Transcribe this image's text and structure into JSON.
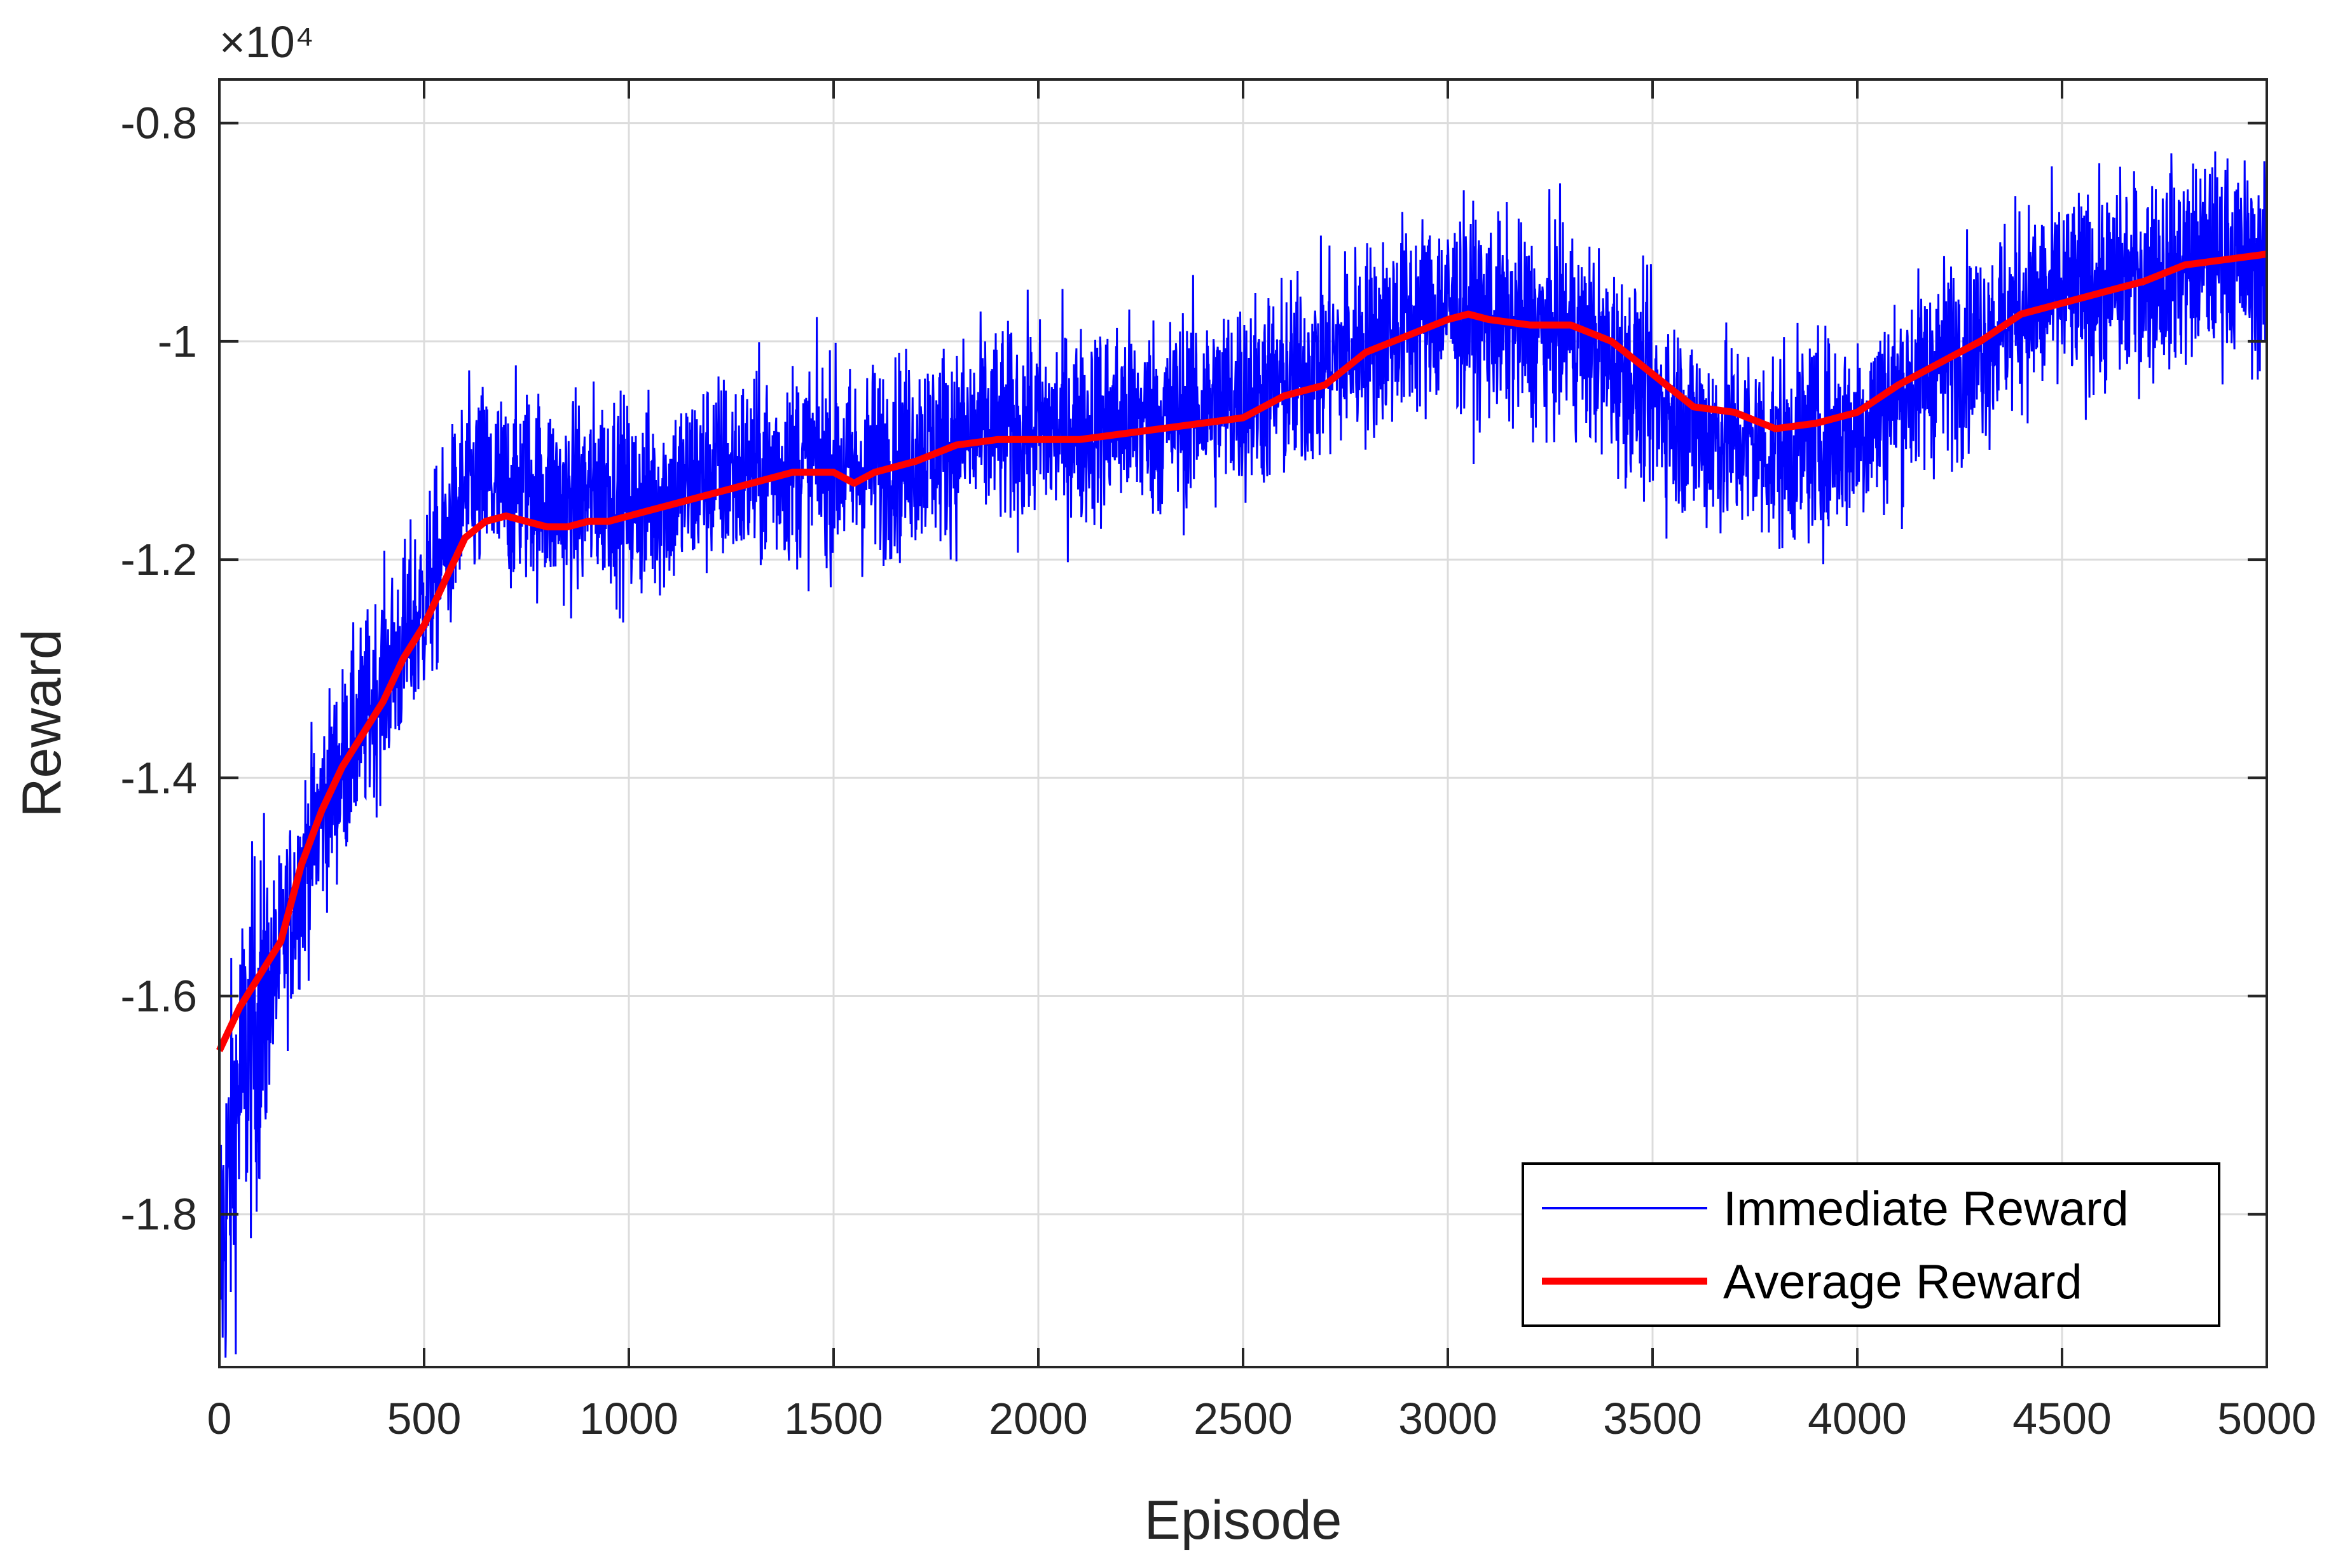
{
  "chart_data": {
    "type": "line",
    "title": "",
    "xlabel": "Episode",
    "ylabel": "Reward",
    "y_multiplier_label": "×10⁴",
    "xlim": [
      0,
      5000
    ],
    "ylim": [
      -1.94,
      -0.76
    ],
    "x_ticks": [
      0,
      500,
      1000,
      1500,
      2000,
      2500,
      3000,
      3500,
      4000,
      4500,
      5000
    ],
    "x_tick_labels": [
      "0",
      "500",
      "1000",
      "1500",
      "2000",
      "2500",
      "3000",
      "3500",
      "4000",
      "4500",
      "5000"
    ],
    "y_ticks": [
      -1.8,
      -1.6,
      -1.4,
      -1.2,
      -1.0,
      -0.8
    ],
    "y_tick_labels": [
      "-1.8",
      "-1.6",
      "-1.4",
      "-1.2",
      "-1",
      "-0.8"
    ],
    "grid": true,
    "legend_position": "bottom-right",
    "series": [
      {
        "name": "Immediate Reward",
        "color": "#0000ff",
        "line_width": "thin",
        "style": "noisy",
        "x": [
          0,
          50,
          100,
          150,
          200,
          250,
          300,
          350,
          400,
          450,
          500,
          550,
          600,
          650,
          700,
          750,
          800,
          850,
          900,
          950,
          1000,
          1100,
          1200,
          1300,
          1400,
          1500,
          1550,
          1600,
          1700,
          1800,
          1900,
          2000,
          2100,
          2200,
          2300,
          2400,
          2500,
          2600,
          2700,
          2800,
          2900,
          3000,
          3100,
          3200,
          3300,
          3400,
          3500,
          3600,
          3700,
          3800,
          3900,
          4000,
          4100,
          4200,
          4300,
          4400,
          4500,
          4600,
          4700,
          4800,
          4900,
          5000
        ],
        "values": [
          -1.85,
          -1.68,
          -1.62,
          -1.56,
          -1.49,
          -1.43,
          -1.39,
          -1.35,
          -1.31,
          -1.28,
          -1.24,
          -1.19,
          -1.14,
          -1.13,
          -1.14,
          -1.13,
          -1.14,
          -1.15,
          -1.14,
          -1.13,
          -1.15,
          -1.14,
          -1.12,
          -1.12,
          -1.11,
          -1.11,
          -1.12,
          -1.11,
          -1.1,
          -1.09,
          -1.08,
          -1.08,
          -1.08,
          -1.07,
          -1.07,
          -1.06,
          -1.05,
          -1.04,
          -1.02,
          -1.0,
          -0.98,
          -0.97,
          -0.98,
          -0.99,
          -0.99,
          -1.02,
          -1.05,
          -1.08,
          -1.09,
          -1.1,
          -1.09,
          -1.08,
          -1.05,
          -1.02,
          -1.0,
          -0.97,
          -0.96,
          -0.95,
          -0.94,
          -0.93,
          -0.92,
          -0.94
        ],
        "noise_amplitude": 0.06
      },
      {
        "name": "Average Reward",
        "color": "#ff0000",
        "line_width": "thick",
        "x": [
          0,
          50,
          100,
          150,
          200,
          250,
          300,
          350,
          400,
          450,
          500,
          550,
          600,
          650,
          700,
          750,
          800,
          850,
          900,
          950,
          1000,
          1100,
          1200,
          1300,
          1400,
          1500,
          1550,
          1600,
          1700,
          1800,
          1900,
          2000,
          2100,
          2200,
          2300,
          2400,
          2500,
          2600,
          2700,
          2800,
          2900,
          3000,
          3050,
          3100,
          3200,
          3300,
          3400,
          3500,
          3600,
          3700,
          3800,
          3900,
          4000,
          4100,
          4200,
          4300,
          4400,
          4500,
          4600,
          4700,
          4800,
          4900,
          5000
        ],
        "values": [
          -1.65,
          -1.61,
          -1.58,
          -1.55,
          -1.48,
          -1.43,
          -1.39,
          -1.36,
          -1.33,
          -1.29,
          -1.26,
          -1.22,
          -1.18,
          -1.165,
          -1.16,
          -1.165,
          -1.17,
          -1.17,
          -1.165,
          -1.165,
          -1.16,
          -1.15,
          -1.14,
          -1.13,
          -1.12,
          -1.12,
          -1.13,
          -1.12,
          -1.11,
          -1.095,
          -1.09,
          -1.09,
          -1.09,
          -1.085,
          -1.08,
          -1.075,
          -1.07,
          -1.05,
          -1.04,
          -1.01,
          -0.995,
          -0.98,
          -0.975,
          -0.98,
          -0.985,
          -0.985,
          -1.0,
          -1.03,
          -1.06,
          -1.065,
          -1.08,
          -1.075,
          -1.065,
          -1.04,
          -1.02,
          -1.0,
          -0.975,
          -0.965,
          -0.955,
          -0.945,
          -0.93,
          -0.925,
          -0.92
        ]
      }
    ]
  }
}
